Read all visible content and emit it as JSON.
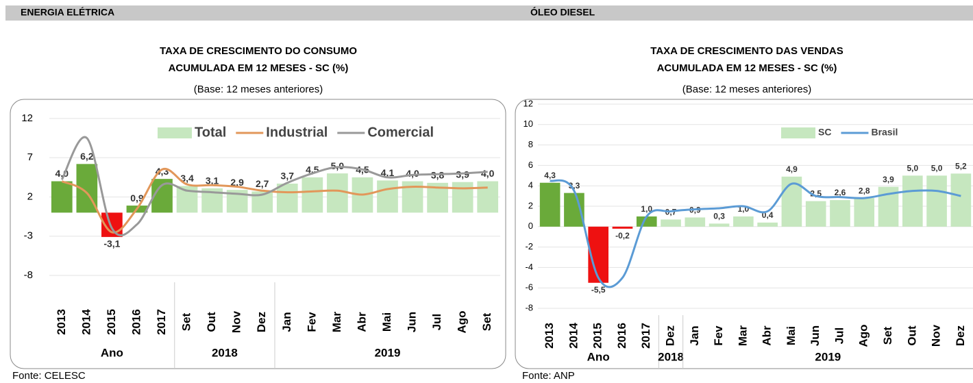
{
  "chart_data": [
    {
      "type": "bar",
      "section": "ENERGIA ELÉTRICA",
      "title": "TAXA DE CRESCIMENTO DO CONSUMO",
      "title2": "ACUMULADA EM 12 MESES - SC (%)",
      "subtitle": "(Base: 12 meses anteriores)",
      "source": "Fonte: CELESC",
      "categories": [
        "2013",
        "2014",
        "2015",
        "2016",
        "2017",
        "Set",
        "Out",
        "Nov",
        "Dez",
        "Jan",
        "Fev",
        "Mar",
        "Abr",
        "Mai",
        "Jun",
        "Jul",
        "Ago",
        "Set"
      ],
      "category_groups": [
        "Ano",
        "Ano",
        "Ano",
        "Ano",
        "Ano",
        "2018",
        "2018",
        "2018",
        "2018",
        "2019",
        "2019",
        "2019",
        "2019",
        "2019",
        "2019",
        "2019",
        "2019",
        "2019"
      ],
      "ylim": [
        -8,
        14
      ],
      "yticks": [
        -8,
        -3,
        2,
        7,
        12
      ],
      "grid": true,
      "series": [
        {
          "name": "Total",
          "color": "#c6e7bf",
          "colors": [
            "#6aaa3a",
            "#6aaa3a",
            "#ee1111",
            "#6aaa3a",
            "#6aaa3a",
            "#c6e7bf",
            "#c6e7bf",
            "#c6e7bf",
            "#c6e7bf",
            "#c6e7bf",
            "#c6e7bf",
            "#c6e7bf",
            "#c6e7bf",
            "#c6e7bf",
            "#c6e7bf",
            "#c6e7bf",
            "#c6e7bf",
            "#c6e7bf"
          ],
          "values": [
            4.0,
            6.2,
            -3.1,
            0.9,
            4.3,
            3.4,
            3.1,
            2.9,
            2.7,
            3.7,
            4.5,
            5.0,
            4.5,
            4.1,
            4.0,
            3.8,
            3.9,
            4.0
          ],
          "value_labels": [
            "4,0",
            "6,2",
            "-3,1",
            "0,9",
            "4,3",
            "3,4",
            "3,1",
            "2,9",
            "2,7",
            "3,7",
            "4,5",
            "5,0",
            "4,5",
            "4,1",
            "4,0",
            "3,8",
            "3,9",
            "4,0"
          ]
        },
        {
          "name": "Industrial",
          "color": "#e2975a",
          "line": true,
          "values": [
            4.0,
            2.5,
            -2.5,
            0.5,
            5.5,
            3.6,
            3.5,
            3.3,
            2.8,
            2.6,
            2.7,
            2.8,
            2.3,
            3.0,
            3.3,
            3.2,
            3.1,
            3.2
          ]
        },
        {
          "name": "Comercial",
          "color": "#999999",
          "line": true,
          "values": [
            4.2,
            9.5,
            -2.0,
            -1.5,
            3.5,
            2.8,
            2.6,
            2.4,
            2.3,
            3.8,
            5.0,
            5.8,
            5.5,
            4.5,
            4.8,
            4.9,
            5.0,
            5.2
          ]
        }
      ]
    },
    {
      "type": "bar",
      "section": "ÓLEO DIESEL",
      "title": "TAXA DE CRESCIMENTO DAS VENDAS",
      "title2": "ACUMULADA EM 12 MESES - SC (%)",
      "subtitle": "(Base: 12 meses anteriores)",
      "source": "Fonte: ANP",
      "categories": [
        "2013",
        "2014",
        "2015",
        "2016",
        "2017",
        "Dez",
        "Jan",
        "Fev",
        "Mar",
        "Abr",
        "Mai",
        "Jun",
        "Jul",
        "Ago",
        "Set",
        "Out",
        "Nov",
        "Dez"
      ],
      "category_groups": [
        "Ano",
        "Ano",
        "Ano",
        "Ano",
        "Ano",
        "2018",
        "2019",
        "2019",
        "2019",
        "2019",
        "2019",
        "2019",
        "2019",
        "2019",
        "2019",
        "2019",
        "2019",
        "2019"
      ],
      "ylim": [
        -8,
        12
      ],
      "yticks": [
        -8,
        -6,
        -4,
        -2,
        0,
        2,
        4,
        6,
        8,
        10,
        12
      ],
      "grid": true,
      "series": [
        {
          "name": "SC",
          "color": "#c6e7bf",
          "colors": [
            "#6aaa3a",
            "#6aaa3a",
            "#ee1111",
            "#ee1111",
            "#6aaa3a",
            "#c6e7bf",
            "#c6e7bf",
            "#c6e7bf",
            "#c6e7bf",
            "#c6e7bf",
            "#c6e7bf",
            "#c6e7bf",
            "#c6e7bf",
            "#c6e7bf",
            "#c6e7bf",
            "#c6e7bf",
            "#c6e7bf",
            "#c6e7bf"
          ],
          "values": [
            4.3,
            3.3,
            -5.5,
            -0.2,
            1.0,
            0.7,
            0.9,
            0.3,
            1.0,
            0.4,
            4.9,
            2.5,
            2.6,
            2.8,
            3.9,
            5.0,
            5.0,
            5.2
          ],
          "value_labels": [
            "4,3",
            "3,3",
            "-5,5",
            "-0,2",
            "1,0",
            "0,7",
            "0,9",
            "0,3",
            "1,0",
            "0,4",
            "4,9",
            "2,5",
            "2,6",
            "2,8",
            "3,9",
            "5,0",
            "5,0",
            "5,2"
          ]
        },
        {
          "name": "Brasil",
          "color": "#5b9bd5",
          "line": true,
          "values": [
            4.5,
            3.5,
            -5.0,
            -5.0,
            1.0,
            1.5,
            1.7,
            1.8,
            2.0,
            1.5,
            4.2,
            3.0,
            2.9,
            2.8,
            3.2,
            3.5,
            3.5,
            3.0
          ]
        }
      ]
    }
  ]
}
